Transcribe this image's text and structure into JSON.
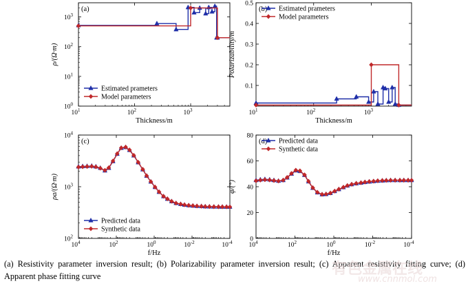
{
  "chart_data": [
    {
      "panel": "(a)",
      "type": "line",
      "step": true,
      "xlabel": "Thickness/m",
      "ylabel": "ρ/(Ω·m)",
      "xscale": "log",
      "yscale": "log",
      "xlim": [
        10,
        5000
      ],
      "ylim": [
        1,
        3000
      ],
      "xticks": [
        {
          "v": 10,
          "t": "10"
        },
        {
          "v": 100,
          "t": "10"
        },
        {
          "v": 1000,
          "t": "10"
        }
      ],
      "xtick_exp": [
        "1",
        "2",
        "3"
      ],
      "yticks": [
        {
          "v": 1,
          "t": "10"
        },
        {
          "v": 10,
          "t": "10"
        },
        {
          "v": 100,
          "t": "10"
        },
        {
          "v": 1000,
          "t": "10"
        }
      ],
      "ytick_exp": [
        "0",
        "1",
        "2",
        "3"
      ],
      "legend_position": "bottom-left",
      "series": [
        {
          "name": "Estimated prameters",
          "color": "#1f2fa8",
          "marker": "triangle",
          "x": [
            10,
            250,
            250,
            550,
            550,
            900,
            900,
            1150,
            1150,
            1450,
            1450,
            1850,
            1850,
            2100,
            2100,
            2400,
            2400,
            2700,
            2700,
            2900,
            2900,
            3000,
            3000,
            5000
          ],
          "y": [
            520,
            520,
            600,
            600,
            380,
            380,
            2100,
            2100,
            1400,
            1400,
            2000,
            2000,
            1300,
            1300,
            2100,
            2100,
            1500,
            1500,
            2300,
            2300,
            200,
            200,
            200,
            200
          ]
        },
        {
          "name": "Model parameters",
          "color": "#c0282a",
          "marker": "diamond",
          "x": [
            10,
            1000,
            1000,
            3000,
            3000,
            5000
          ],
          "y": [
            500,
            500,
            2000,
            2000,
            200,
            200
          ]
        }
      ]
    },
    {
      "panel": "(b)",
      "type": "line",
      "step": true,
      "xlabel": "Thickness/m",
      "ylabel": "Polarizability/m",
      "xscale": "log",
      "yscale": "linear",
      "xlim": [
        10,
        5000
      ],
      "ylim": [
        0,
        0.5
      ],
      "xticks": [
        {
          "v": 10,
          "t": "10"
        },
        {
          "v": 100,
          "t": "10"
        },
        {
          "v": 1000,
          "t": "10"
        }
      ],
      "xtick_exp": [
        "1",
        "2",
        "3"
      ],
      "yticks": [
        {
          "v": 0.1,
          "t": "0.1"
        },
        {
          "v": 0.2,
          "t": "0.2"
        },
        {
          "v": 0.3,
          "t": "0.3"
        },
        {
          "v": 0.4,
          "t": "0.4"
        },
        {
          "v": 0.5,
          "t": "0.5"
        }
      ],
      "legend_position": "top-left",
      "series": [
        {
          "name": "Estimated prameters",
          "color": "#1f2fa8",
          "marker": "triangle",
          "x": [
            10,
            250,
            250,
            550,
            550,
            900,
            900,
            1100,
            1100,
            1300,
            1300,
            1600,
            1600,
            1750,
            1750,
            2000,
            2000,
            2300,
            2300,
            2600,
            2600,
            3000,
            3000,
            5000
          ],
          "y": [
            0.015,
            0.015,
            0.035,
            0.035,
            0.045,
            0.045,
            0.02,
            0.02,
            0.07,
            0.07,
            0.01,
            0.01,
            0.09,
            0.09,
            0.085,
            0.085,
            0.02,
            0.02,
            0.09,
            0.09,
            0.01,
            0.01,
            0.005,
            0.005
          ]
        },
        {
          "name": "Model parameters",
          "color": "#c0282a",
          "marker": "diamond",
          "x": [
            10,
            1000,
            1000,
            3000,
            3000,
            5000
          ],
          "y": [
            0.005,
            0.005,
            0.2,
            0.2,
            0.005,
            0.005
          ]
        }
      ]
    },
    {
      "panel": "(c)",
      "type": "line",
      "xlabel": "f/Hz",
      "ylabel": "ρa/(Ω·m)",
      "xscale": "log-reversed",
      "yscale": "log",
      "xlim": [
        10000,
        0.0001
      ],
      "ylim": [
        100,
        10000
      ],
      "xticks": [
        {
          "v": 10000,
          "t": "10"
        },
        {
          "v": 100,
          "t": "10"
        },
        {
          "v": 1,
          "t": "10"
        },
        {
          "v": 0.01,
          "t": "10"
        },
        {
          "v": 0.0001,
          "t": "10"
        }
      ],
      "xtick_exp": [
        "4",
        "2",
        "0",
        "-2",
        "-4"
      ],
      "yticks": [
        {
          "v": 100,
          "t": "10"
        },
        {
          "v": 1000,
          "t": "10"
        },
        {
          "v": 10000,
          "t": "10"
        }
      ],
      "ytick_exp": [
        "2",
        "3",
        "4"
      ],
      "legend_position": "bottom-left",
      "series": [
        {
          "name": "Predicted data",
          "color": "#1f2fa8",
          "marker": "triangle",
          "x": [
            10000,
            6000,
            3500,
            2000,
            1200,
            700,
            400,
            250,
            150,
            90,
            55,
            32,
            20,
            12,
            7,
            4,
            2.5,
            1.5,
            0.9,
            0.55,
            0.32,
            0.2,
            0.12,
            0.07,
            0.04,
            0.025,
            0.015,
            0.009,
            0.0055,
            0.0032,
            0.002,
            0.0012,
            0.0007,
            0.0004,
            0.00025,
            0.00015,
            0.0001
          ],
          "y": [
            2450,
            2480,
            2500,
            2520,
            2450,
            2300,
            2050,
            2300,
            3100,
            4300,
            5600,
            5800,
            5100,
            4000,
            2950,
            2150,
            1620,
            1250,
            980,
            790,
            650,
            580,
            520,
            480,
            460,
            445,
            435,
            428,
            422,
            418,
            414,
            412,
            410,
            409,
            408,
            407,
            407
          ]
        },
        {
          "name": "Synthetic data",
          "color": "#c0282a",
          "marker": "diamond",
          "x": [
            10000,
            6000,
            3500,
            2000,
            1200,
            700,
            400,
            250,
            150,
            90,
            55,
            32,
            20,
            12,
            7,
            4,
            2.5,
            1.5,
            0.9,
            0.55,
            0.32,
            0.2,
            0.12,
            0.07,
            0.04,
            0.025,
            0.015,
            0.009,
            0.0055,
            0.0032,
            0.002,
            0.0012,
            0.0007,
            0.0004,
            0.00025,
            0.00015,
            0.0001
          ],
          "y": [
            2400,
            2430,
            2460,
            2480,
            2420,
            2280,
            2080,
            2330,
            3150,
            4350,
            5650,
            5850,
            5150,
            4050,
            2980,
            2170,
            1630,
            1255,
            985,
            795,
            652,
            582,
            522,
            481,
            461,
            446,
            436,
            429,
            423,
            418,
            414,
            412,
            410,
            409,
            408,
            407,
            407
          ]
        }
      ]
    },
    {
      "panel": "(d)",
      "type": "line",
      "xlabel": "f/Hz",
      "ylabel": "φ/(°)",
      "xscale": "log-reversed",
      "yscale": "linear",
      "xlim": [
        10000,
        0.0001
      ],
      "ylim": [
        0,
        80
      ],
      "xticks": [
        {
          "v": 10000,
          "t": "10"
        },
        {
          "v": 100,
          "t": "10"
        },
        {
          "v": 1,
          "t": "10"
        },
        {
          "v": 0.01,
          "t": "10"
        },
        {
          "v": 0.0001,
          "t": "10"
        }
      ],
      "xtick_exp": [
        "4",
        "2",
        "0",
        "-2",
        "-4"
      ],
      "yticks": [
        {
          "v": 0,
          "t": "0"
        },
        {
          "v": 20,
          "t": "20"
        },
        {
          "v": 40,
          "t": "40"
        },
        {
          "v": 60,
          "t": "60"
        },
        {
          "v": 80,
          "t": "80"
        }
      ],
      "legend_position": "top-left",
      "series": [
        {
          "name": "Predicted data",
          "color": "#1f2fa8",
          "marker": "triangle",
          "x": [
            10000,
            6000,
            3500,
            2000,
            1200,
            700,
            400,
            250,
            150,
            90,
            55,
            32,
            20,
            12,
            7,
            4,
            2.5,
            1.5,
            0.9,
            0.55,
            0.32,
            0.2,
            0.12,
            0.07,
            0.04,
            0.025,
            0.015,
            0.009,
            0.0055,
            0.0032,
            0.002,
            0.0012,
            0.0007,
            0.0004,
            0.00025,
            0.00015,
            0.0001
          ],
          "y": [
            45,
            45.5,
            45.8,
            45.5,
            45,
            44.5,
            45,
            47,
            50,
            52.5,
            52,
            49,
            44,
            39,
            35.5,
            34,
            34.2,
            35,
            36.5,
            38,
            39.5,
            40.8,
            41.8,
            42.5,
            43,
            43.5,
            43.9,
            44.2,
            44.5,
            44.7,
            44.9,
            45,
            45,
            45,
            45,
            45,
            45
          ]
        },
        {
          "name": "Synthetic data",
          "color": "#c0282a",
          "marker": "diamond",
          "x": [
            10000,
            6000,
            3500,
            2000,
            1200,
            700,
            400,
            250,
            150,
            90,
            55,
            32,
            20,
            12,
            7,
            4,
            2.5,
            1.5,
            0.9,
            0.55,
            0.32,
            0.2,
            0.12,
            0.07,
            0.04,
            0.025,
            0.015,
            0.009,
            0.0055,
            0.0032,
            0.002,
            0.0012,
            0.0007,
            0.0004,
            0.00025,
            0.00015,
            0.0001
          ],
          "y": [
            44.6,
            45.1,
            45.4,
            45.2,
            44.8,
            44.4,
            45.1,
            47.2,
            50.3,
            52.8,
            52.3,
            49.2,
            44.2,
            39.2,
            35.7,
            34.1,
            34.3,
            35.1,
            36.6,
            38.1,
            39.6,
            40.9,
            41.9,
            42.6,
            43.1,
            43.6,
            44,
            44.3,
            44.6,
            44.8,
            44.9,
            45,
            45,
            45,
            45,
            45,
            45
          ]
        }
      ]
    }
  ],
  "caption": "(a) Resistivity parameter inversion result; (b) Polarizability parameter inversion result; (c) Apparent resistivity fitting curve; (d) Apparent phase fitting curve",
  "watermark": {
    "text": "有色金属在线",
    "url_text": "www.cnnmol.com",
    "color": "#e9d6d6"
  }
}
